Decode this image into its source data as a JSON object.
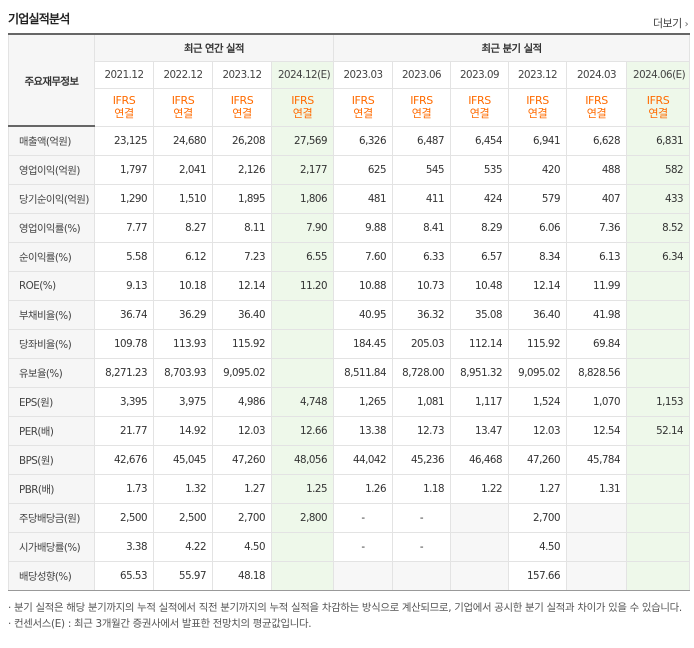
{
  "header": {
    "title": "기업실적분석",
    "more_label": "더보기",
    "more_icon": "chevron-right-icon"
  },
  "table": {
    "row_header_label": "주요재무정보",
    "groups": {
      "annual": "최근 연간 실적",
      "quarterly": "최근 분기 실적"
    },
    "periods": [
      "2021.12",
      "2022.12",
      "2023.12",
      "2024.12(E)",
      "2023.03",
      "2023.06",
      "2023.09",
      "2023.12",
      "2024.03",
      "2024.06(E)"
    ],
    "standard_line1": "IFRS",
    "standard_line2": "연결",
    "rows": [
      {
        "label": "매출액(억원)",
        "values": [
          "23,125",
          "24,680",
          "26,208",
          "27,569",
          "6,326",
          "6,487",
          "6,454",
          "6,941",
          "6,628",
          "6,831"
        ]
      },
      {
        "label": "영업이익(억원)",
        "values": [
          "1,797",
          "2,041",
          "2,126",
          "2,177",
          "625",
          "545",
          "535",
          "420",
          "488",
          "582"
        ]
      },
      {
        "label": "당기순이익(억원)",
        "values": [
          "1,290",
          "1,510",
          "1,895",
          "1,806",
          "481",
          "411",
          "424",
          "579",
          "407",
          "433"
        ]
      },
      {
        "label": "영업이익률(%)",
        "values": [
          "7.77",
          "8.27",
          "8.11",
          "7.90",
          "9.88",
          "8.41",
          "8.29",
          "6.06",
          "7.36",
          "8.52"
        ]
      },
      {
        "label": "순이익률(%)",
        "values": [
          "5.58",
          "6.12",
          "7.23",
          "6.55",
          "7.60",
          "6.33",
          "6.57",
          "8.34",
          "6.13",
          "6.34"
        ]
      },
      {
        "label": "ROE(%)",
        "values": [
          "9.13",
          "10.18",
          "12.14",
          "11.20",
          "10.88",
          "10.73",
          "10.48",
          "12.14",
          "11.99",
          ""
        ]
      },
      {
        "label": "부채비율(%)",
        "values": [
          "36.74",
          "36.29",
          "36.40",
          "",
          "40.95",
          "36.32",
          "35.08",
          "36.40",
          "41.98",
          ""
        ]
      },
      {
        "label": "당좌비율(%)",
        "values": [
          "109.78",
          "113.93",
          "115.92",
          "",
          "184.45",
          "205.03",
          "112.14",
          "115.92",
          "69.84",
          ""
        ]
      },
      {
        "label": "유보율(%)",
        "values": [
          "8,271.23",
          "8,703.93",
          "9,095.02",
          "",
          "8,511.84",
          "8,728.00",
          "8,951.32",
          "9,095.02",
          "8,828.56",
          ""
        ]
      },
      {
        "label": "EPS(원)",
        "values": [
          "3,395",
          "3,975",
          "4,986",
          "4,748",
          "1,265",
          "1,081",
          "1,117",
          "1,524",
          "1,070",
          "1,153"
        ]
      },
      {
        "label": "PER(배)",
        "values": [
          "21.77",
          "14.92",
          "12.03",
          "12.66",
          "13.38",
          "12.73",
          "13.47",
          "12.03",
          "12.54",
          "52.14"
        ]
      },
      {
        "label": "BPS(원)",
        "values": [
          "42,676",
          "45,045",
          "47,260",
          "48,056",
          "44,042",
          "45,236",
          "46,468",
          "47,260",
          "45,784",
          ""
        ]
      },
      {
        "label": "PBR(배)",
        "values": [
          "1.73",
          "1.32",
          "1.27",
          "1.25",
          "1.26",
          "1.18",
          "1.22",
          "1.27",
          "1.31",
          ""
        ]
      },
      {
        "label": "주당배당금(원)",
        "values": [
          "2,500",
          "2,500",
          "2,700",
          "2,800",
          "-",
          "-",
          "",
          "2,700",
          "",
          ""
        ]
      },
      {
        "label": "시가배당률(%)",
        "values": [
          "3.38",
          "4.22",
          "4.50",
          "",
          "-",
          "-",
          "",
          "4.50",
          "",
          ""
        ]
      },
      {
        "label": "배당성향(%)",
        "values": [
          "65.53",
          "55.97",
          "48.18",
          "",
          "",
          "",
          "",
          "157.66",
          "",
          ""
        ]
      }
    ]
  },
  "notes": [
    "· 분기 실적은 해당 분기까지의 누적 실적에서 직전 분기까지의 누적 실적을 차감하는 방식으로 계산되므로, 기업에서 공시한 분기 실적과 차이가 있을 수 있습니다.",
    "· 컨센서스(E) : 최근 3개월간 증권사에서 발표한 전망치의 평균값입니다."
  ]
}
